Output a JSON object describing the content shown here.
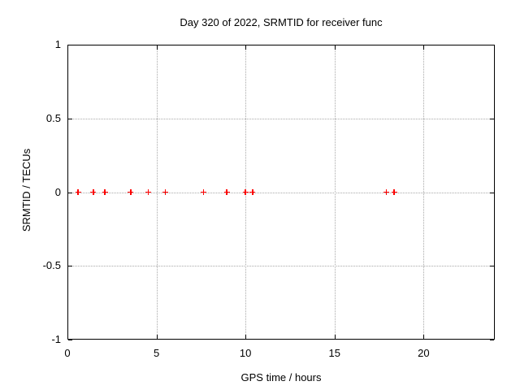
{
  "chart_data": {
    "type": "scatter",
    "title": "Day 320 of 2022, SRMTID for receiver func",
    "xlabel": "GPS time / hours",
    "ylabel": "SRMTID / TECUs",
    "xlim": [
      0,
      24
    ],
    "ylim": [
      -1,
      1
    ],
    "xticks": [
      0,
      5,
      10,
      15,
      20
    ],
    "xtick_labels": [
      "0",
      "5",
      "10",
      "15",
      "20"
    ],
    "yticks": [
      -1,
      -0.5,
      0,
      0.5,
      1
    ],
    "ytick_labels": [
      "-1",
      "-0.5",
      "0",
      "0.5",
      "1"
    ],
    "grid": true,
    "series": [
      {
        "marker": "plus",
        "color": "#ff0000",
        "points": [
          [
            0.6,
            0
          ],
          [
            1.45,
            0
          ],
          [
            2.1,
            0
          ],
          [
            3.55,
            0
          ],
          [
            4.55,
            0
          ],
          [
            5.5,
            0
          ],
          [
            7.65,
            0
          ],
          [
            8.95,
            0
          ],
          [
            10.0,
            0
          ],
          [
            10.4,
            0
          ],
          [
            17.9,
            0
          ],
          [
            18.35,
            0
          ]
        ]
      }
    ],
    "colors": {
      "background": "#ffffff",
      "border": "#000000",
      "grid": "#a8a8a8",
      "text": "#000000",
      "marker": "#ff0000"
    }
  }
}
